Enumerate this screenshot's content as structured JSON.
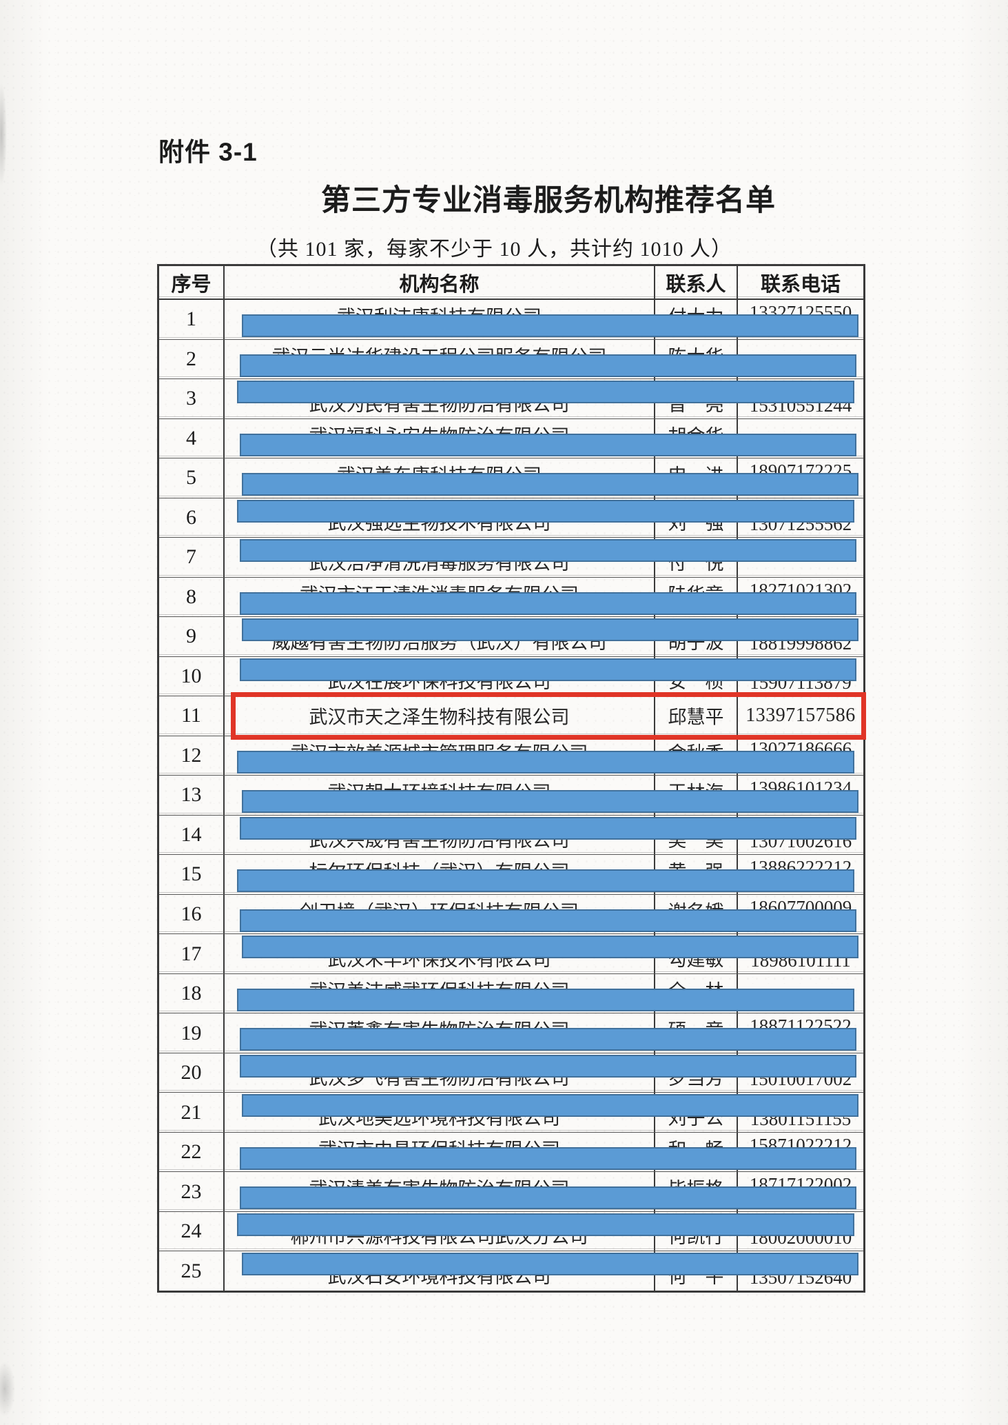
{
  "page": {
    "attachment_label": "附件 3-1",
    "title": "第三方专业消毒服务机构推荐名单",
    "subtitle": "（共 101 家，每家不少于 10 人，共计约 1010 人）"
  },
  "table": {
    "headers": [
      "序号",
      "机构名称",
      "联系人",
      "联系电话"
    ],
    "rows": [
      {
        "no": "1",
        "name": "武汉利洁康科技有限公司",
        "contact": "付大力",
        "phone": "13327125550",
        "redacted": true,
        "peek": "top",
        "highlighted": false
      },
      {
        "no": "2",
        "name": "武汉云尚达华建设工程公司服务有限公司",
        "contact": "陈大华",
        "phone": "",
        "redacted": true,
        "peek": "top",
        "highlighted": false
      },
      {
        "no": "3",
        "name": "武汉为民有害生物防治有限公司",
        "contact": "晋　亮",
        "phone": "15310551244",
        "redacted": true,
        "peek": "bottom",
        "highlighted": false
      },
      {
        "no": "4",
        "name": "武汉福科永安生物防治有限公司",
        "contact": "胡金华",
        "phone": "",
        "redacted": true,
        "peek": "top",
        "highlighted": false
      },
      {
        "no": "5",
        "name": "武汉美东康科技有限公司",
        "contact": "申　进",
        "phone": "18907172225",
        "redacted": true,
        "peek": "top",
        "highlighted": false
      },
      {
        "no": "6",
        "name": "武汉强远生物技术有限公司",
        "contact": "刘　强",
        "phone": "13071255562",
        "redacted": true,
        "peek": "bottom",
        "highlighted": false
      },
      {
        "no": "7",
        "name": "武汉洁净清洗消毒服务有限公司",
        "contact": "付　悦",
        "phone": "",
        "redacted": true,
        "peek": "bottom",
        "highlighted": false
      },
      {
        "no": "8",
        "name": "武汉市江天清洗消毒服务有限公司",
        "contact": "陆华章",
        "phone": "18271021302",
        "redacted": true,
        "peek": "top",
        "highlighted": false
      },
      {
        "no": "9",
        "name": "威越有害生物防治服务（武汉）有限公司",
        "contact": "胡子波",
        "phone": "18819998862",
        "redacted": true,
        "peek": "bottom",
        "highlighted": false
      },
      {
        "no": "10",
        "name": "武汉在展环保科技有限公司",
        "contact": "安　桢",
        "phone": "15907113879",
        "redacted": true,
        "peek": "bottom",
        "highlighted": false
      },
      {
        "no": "11",
        "name": "武汉市天之泽生物科技有限公司",
        "contact": "邱慧平",
        "phone": "13397157586",
        "redacted": false,
        "peek": "none",
        "highlighted": true
      },
      {
        "no": "12",
        "name": "武汉市效美源城市管理服务有限公司",
        "contact": "金秋香",
        "phone": "13027186666",
        "redacted": true,
        "peek": "top",
        "highlighted": false
      },
      {
        "no": "13",
        "name": "武汉朝大环境科技有限公司",
        "contact": "王林海",
        "phone": "13986101234",
        "redacted": true,
        "peek": "top",
        "highlighted": false
      },
      {
        "no": "14",
        "name": "武汉兴晟有害生物防治有限公司",
        "contact": "吴　昊",
        "phone": "13071002616",
        "redacted": true,
        "peek": "bottom",
        "highlighted": false
      },
      {
        "no": "15",
        "name": "标尔环保科技（武汉）有限公司",
        "contact": "黄　强",
        "phone": "13886222212",
        "redacted": true,
        "peek": "top",
        "highlighted": false
      },
      {
        "no": "16",
        "name": "创卫境（武汉）环保科技有限公司",
        "contact": "谢名娥",
        "phone": "18607700009",
        "redacted": true,
        "peek": "top",
        "highlighted": false
      },
      {
        "no": "17",
        "name": "武汉禾丰环保技术有限公司",
        "contact": "勾建敏",
        "phone": "18986101111",
        "redacted": true,
        "peek": "bottom",
        "highlighted": false
      },
      {
        "no": "18",
        "name": "武汉美洁威武环保科技有限公司",
        "contact": "全　林",
        "phone": "",
        "redacted": true,
        "peek": "top",
        "highlighted": false
      },
      {
        "no": "19",
        "name": "武汉莱鑫有害生物防治有限公司",
        "contact": "硕　竞",
        "phone": "18871122522",
        "redacted": true,
        "peek": "top",
        "highlighted": false
      },
      {
        "no": "20",
        "name": "武汉多飞有害生物防治有限公司",
        "contact": "罗当芳",
        "phone": "15010017002",
        "redacted": true,
        "peek": "bottom",
        "highlighted": false
      },
      {
        "no": "21",
        "name": "武汉地美远环境科技有限公司",
        "contact": "刘子公",
        "phone": "13801151155",
        "redacted": true,
        "peek": "bottom",
        "highlighted": false
      },
      {
        "no": "22",
        "name": "武汉市中昌环保科技有限公司",
        "contact": "和　畅",
        "phone": "15871022212",
        "redacted": true,
        "peek": "top",
        "highlighted": false
      },
      {
        "no": "23",
        "name": "武汉清美有害生物防治有限公司",
        "contact": "毕振格",
        "phone": "18717122002",
        "redacted": true,
        "peek": "top",
        "highlighted": false
      },
      {
        "no": "24",
        "name": "郴州市兴源科技有限公司武汉分公司",
        "contact": "何凯行",
        "phone": "18002000010",
        "redacted": true,
        "peek": "bottom",
        "highlighted": false
      },
      {
        "no": "25",
        "name": "武汉石安环境科技有限公司",
        "contact": "何　平",
        "phone": "13507152640",
        "redacted": true,
        "peek": "bottom",
        "highlighted": false
      }
    ]
  },
  "colors": {
    "redaction_bar_fill": "#5b9bd5",
    "redaction_bar_border": "#41719c",
    "highlight_box": "#e03527"
  }
}
